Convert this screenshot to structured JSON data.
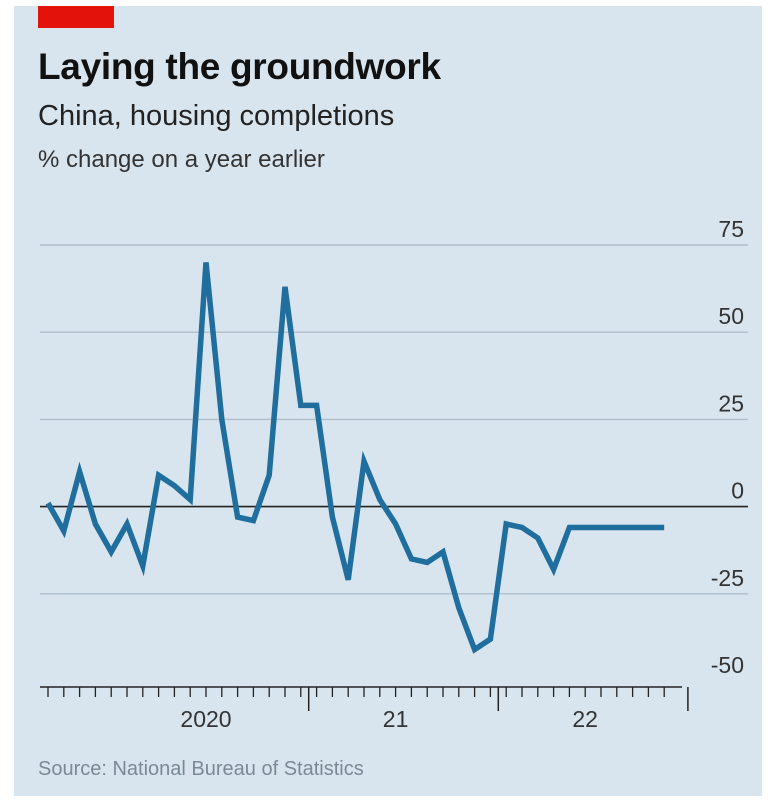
{
  "header": {
    "title": "Laying the groundwork",
    "subtitle": "China, housing completions",
    "unit": "% change on a year earlier"
  },
  "footer": {
    "source": "Source: National Bureau of Statistics"
  },
  "colors": {
    "background": "#d8e5ee",
    "accent_tag": "#e3120b",
    "line": "#1f6e9e",
    "grid": "#aebfcb",
    "zero_line": "#222222"
  },
  "chart_data": {
    "type": "line",
    "title": "Laying the groundwork",
    "subtitle": "China, housing completions",
    "ylabel": "% change on a year earlier",
    "xlabel": "",
    "ylim": [
      -50,
      75
    ],
    "yticks": [
      75,
      50,
      25,
      0,
      -25,
      -50
    ],
    "ytick_labels": [
      "75",
      "50",
      "25",
      "0",
      "-25",
      "-50"
    ],
    "y_axis_side": "right",
    "grid": true,
    "x_axis": {
      "start": "2019-08",
      "end": "2022-11",
      "year_labels": [
        {
          "label": "2020",
          "month": "2020-06"
        },
        {
          "label": "21",
          "month": "2021-06"
        },
        {
          "label": "22",
          "month": "2022-06"
        }
      ],
      "year_boundaries": [
        "2020-12",
        "2021-12",
        "2022-12"
      ]
    },
    "series": [
      {
        "x": [
          "2019-08",
          "2019-09",
          "2019-10",
          "2019-11",
          "2019-12",
          "2020-01",
          "2020-02",
          "2020-03",
          "2020-04",
          "2020-05",
          "2020-06",
          "2020-07",
          "2020-08",
          "2020-09",
          "2020-10",
          "2020-11",
          "2020-12",
          "2021-01",
          "2021-02",
          "2021-03",
          "2021-04",
          "2021-05",
          "2021-06",
          "2021-07",
          "2021-08",
          "2021-09",
          "2021-10",
          "2021-11",
          "2021-12",
          "2022-01",
          "2022-02",
          "2022-03",
          "2022-04",
          "2022-05",
          "2022-06",
          "2022-07",
          "2022-08",
          "2022-09",
          "2022-10",
          "2022-11",
          "2022-12"
        ],
        "values": [
          1,
          -7,
          10,
          -5,
          -13,
          -5,
          -17,
          9,
          6,
          2,
          70,
          25,
          -3,
          -4,
          9,
          63,
          29,
          29,
          -3,
          -21,
          13,
          2,
          -5,
          -15,
          -16,
          -13,
          -29,
          -41,
          -38,
          -5,
          -6,
          -9,
          -18,
          -6,
          -6,
          -6,
          -6,
          -6,
          -6,
          -6,
          -6
        ]
      }
    ]
  }
}
